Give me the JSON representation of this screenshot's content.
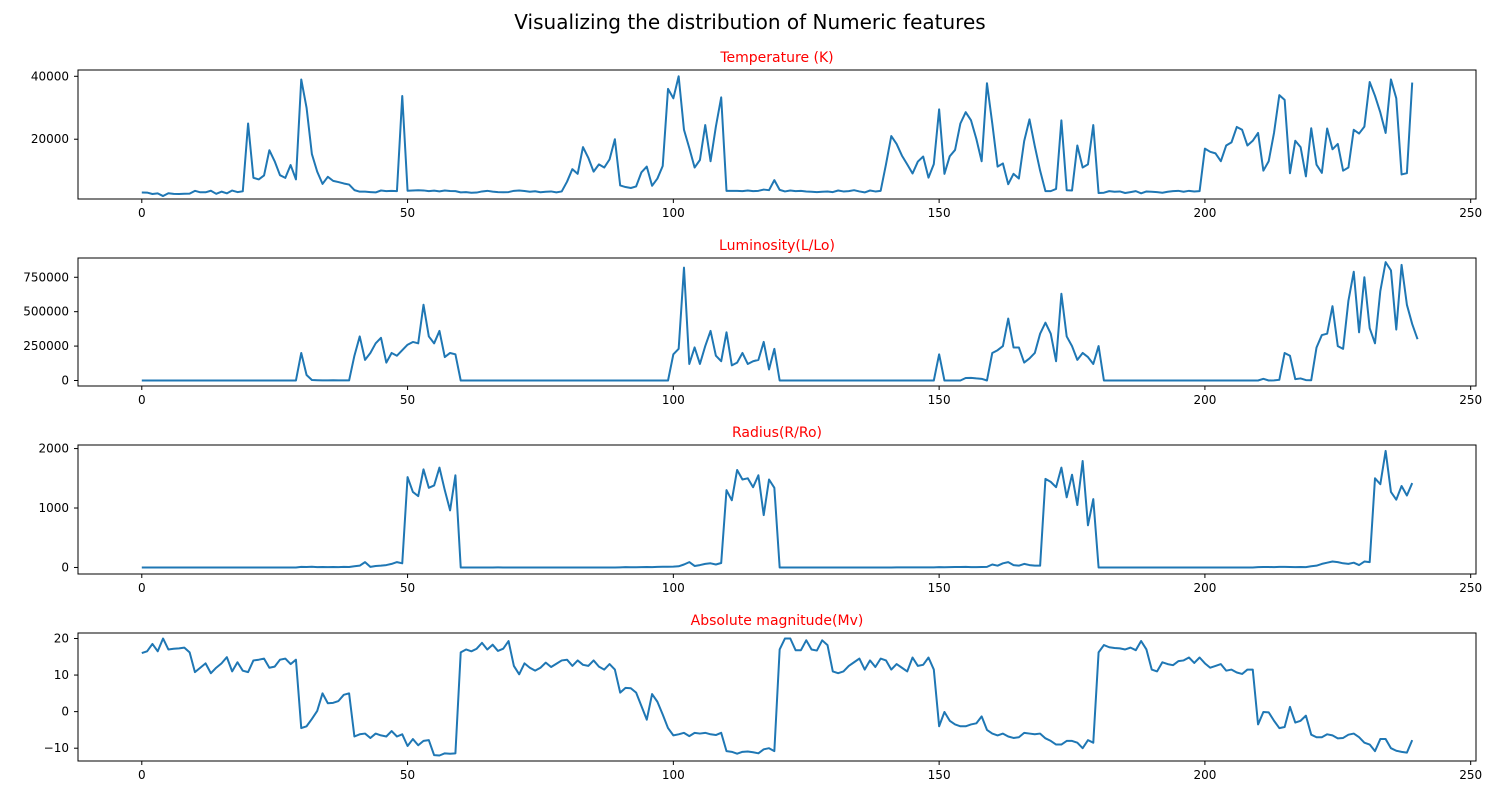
{
  "figure": {
    "suptitle": "Visualizing the distribution of Numeric features"
  },
  "chart_data": [
    {
      "type": "line",
      "title": "Temperature (K)",
      "title_color": "#ff0000",
      "line_color": "#1f77b4",
      "xlim": [
        -12,
        251
      ],
      "ylim": [
        1000,
        42000
      ],
      "xticks": [
        0,
        50,
        100,
        150,
        200,
        250
      ],
      "yticks": [
        20000,
        40000
      ],
      "ytick_labels": [
        "20000",
        "40000"
      ],
      "grid": false,
      "x_start": 0,
      "values": [
        3068,
        3042,
        2600,
        2800,
        1939,
        2840,
        2637,
        2600,
        2650,
        2700,
        3600,
        3129,
        3134,
        3628,
        2650,
        3340,
        2799,
        3692,
        3192,
        3441,
        25000,
        7740,
        7220,
        8500,
        16500,
        12990,
        8570,
        7700,
        11790,
        7230,
        39000,
        30000,
        15276,
        9700,
        5800,
        8052,
        6757,
        6380,
        5936,
        5587,
        3826,
        3331,
        3340,
        3200,
        3090,
        3700,
        3500,
        3570,
        3500,
        33750,
        3626,
        3700,
        3800,
        3720,
        3500,
        3650,
        3420,
        3700,
        3550,
        3500,
        3100,
        3200,
        3000,
        3050,
        3400,
        3600,
        3350,
        3200,
        3150,
        3200,
        3600,
        3700,
        3550,
        3300,
        3450,
        3150,
        3300,
        3400,
        3100,
        3400,
        6500,
        10500,
        9000,
        17500,
        14100,
        9700,
        12000,
        11000,
        13600,
        20000,
        5300,
        4800,
        4500,
        5000,
        9500,
        11300,
        5200,
        7500,
        11500,
        36000,
        33000,
        40000,
        23000,
        17200,
        11000,
        13400,
        24500,
        13000,
        24000,
        33300,
        3600,
        3580,
        3600,
        3500,
        3700,
        3500,
        3600,
        4000,
        3800,
        7000,
        3900,
        3400,
        3700,
        3500,
        3600,
        3400,
        3300,
        3200,
        3300,
        3400,
        3200,
        3700,
        3400,
        3500,
        3800,
        3400,
        3100,
        3700,
        3400,
        3600,
        12000,
        21000,
        18500,
        14800,
        12000,
        9100,
        12900,
        14500,
        7800,
        12100,
        29500,
        9000,
        14600,
        16600,
        25000,
        28600,
        26000,
        20100,
        13000,
        37800,
        25000,
        11300,
        12300,
        5700,
        9000,
        7500,
        19400,
        26300,
        17800,
        10000,
        3500,
        3500,
        4200,
        26000,
        3800,
        3700,
        18000,
        11000,
        12000,
        24500,
        2900,
        3000,
        3500,
        3300,
        3400,
        2900,
        3200,
        3500,
        2800,
        3400,
        3300,
        3200,
        3000,
        3300,
        3500,
        3600,
        3300,
        3600,
        3400,
        3500,
        17000,
        16000,
        15500,
        13000,
        18000,
        19000,
        23900,
        23000,
        18000,
        19500,
        22000,
        10000,
        13000,
        22000,
        34000,
        32500,
        9200,
        19500,
        17500,
        8200,
        23500,
        11900,
        9300,
        23400,
        16800,
        18500,
        10000,
        11000,
        23000,
        21800,
        24000,
        38200,
        33800,
        28500,
        22000,
        39000,
        33000,
        8800,
        9200,
        38000
      ]
    },
    {
      "type": "line",
      "title": "Luminosity(L/Lo)",
      "title_color": "#ff0000",
      "line_color": "#1f77b4",
      "xlim": [
        -12,
        251
      ],
      "ylim": [
        -40000,
        890000
      ],
      "xticks": [
        0,
        50,
        100,
        150,
        200,
        250
      ],
      "yticks": [
        0,
        250000,
        500000,
        750000
      ],
      "ytick_labels": [
        "0",
        "250000",
        "500000",
        "750000"
      ],
      "grid": false,
      "x_start": 0,
      "values": [
        0.0024,
        0.0005,
        0.0003,
        0.0002,
        0.00014,
        0.00065,
        0.00073,
        0.0004,
        0.00069,
        0.00018,
        0.00029,
        0.00035,
        0.0006,
        0.0001,
        0.0015,
        0.0003,
        0.0001,
        0.0002,
        0.0005,
        0.0006,
        0.00021,
        0.00018,
        0.0007,
        0.0003,
        0.0004,
        0.00095,
        0.0011,
        0.0013,
        0.0007,
        0.0008,
        200000,
        40000,
        3800,
        2000,
        1000,
        900,
        1500,
        1200,
        800,
        700,
        180000,
        320000,
        150000,
        200000,
        270000,
        310000,
        130000,
        200000,
        180000,
        220000,
        260000,
        280000,
        270000,
        550000,
        320000,
        270000,
        360000,
        170000,
        200000,
        190000,
        0.003,
        0.0002,
        0.0002,
        0.0003,
        0.0004,
        0.0005,
        0.0003,
        0.0002,
        0.0003,
        0.0004,
        0.0006,
        0.0008,
        0.0008,
        0.0002,
        0.0005,
        0.0004,
        0.0006,
        0.0003,
        0.0002,
        0.0007,
        0.0005,
        0.0001,
        0.0007,
        0.0005,
        0.0004,
        0.0003,
        0.0002,
        0.0006,
        0.0005,
        0.0005,
        0.001,
        0.0006,
        0.0008,
        0.0012,
        0.0011,
        0.0008,
        0.0009,
        0.0015,
        0.0006,
        0.0014,
        190000,
        230000,
        820000,
        120000,
        240000,
        120000,
        250000,
        360000,
        180000,
        140000,
        350000,
        110000,
        130000,
        200000,
        120000,
        140000,
        150000,
        280000,
        80000,
        230000,
        0.0009,
        0.0011,
        0.001,
        0.0008,
        0.0009,
        0.0012,
        0.0015,
        0.001,
        0.0015,
        0.0011,
        0.0009,
        0.0013,
        0.0014,
        0.0011,
        0.0012,
        0.0009,
        0.0008,
        0.0013,
        0.0014,
        0.0012,
        0.0015,
        0.0012,
        0.0011,
        0.0009,
        0.0008,
        0.0013,
        0.0011,
        0.0014,
        0.0012,
        0.001,
        190000,
        0.9,
        1.5,
        2,
        4.5,
        18000,
        19000,
        15000,
        12000,
        3,
        200000,
        220000,
        250000,
        450000,
        240000,
        240000,
        130000,
        160000,
        200000,
        340000,
        420000,
        340000,
        140000,
        630000,
        320000,
        250000,
        150000,
        200000,
        170000,
        120000,
        250000,
        0.002,
        0.0012,
        0.0011,
        0.0013,
        0.0009,
        0.0015,
        0.0014,
        0.0008,
        0.001,
        0.0013,
        0.0011,
        0.0012,
        0.0015,
        0.0009,
        0.001,
        0.0014,
        0.0013,
        0.0011,
        0.001,
        0.0009,
        0.0012,
        0.0015,
        0.0013,
        0.0011,
        0.001,
        0.0012,
        0.0014,
        0.0013,
        0.001,
        0.0011,
        12000,
        0.2,
        1000,
        5000,
        200000,
        180000,
        10000,
        15000,
        3000,
        2000,
        240000,
        330000,
        340000,
        540000,
        250000,
        230000,
        580000,
        790000,
        350000,
        750000,
        380000,
        270000,
        650000,
        860000,
        800000,
        370000,
        840000,
        550000,
        410000,
        300000
      ]
    },
    {
      "type": "line",
      "title": "Radius(R/Ro)",
      "title_color": "#ff0000",
      "line_color": "#1f77b4",
      "xlim": [
        -12,
        251
      ],
      "ylim": [
        -110,
        2060
      ],
      "xticks": [
        0,
        50,
        100,
        150,
        200,
        250
      ],
      "yticks": [
        0,
        1000,
        2000
      ],
      "ytick_labels": [
        "0",
        "1000",
        "2000"
      ],
      "grid": false,
      "x_start": 0,
      "values": [
        0.17,
        0.15,
        0.1,
        0.16,
        0.1,
        0.13,
        0.11,
        0.13,
        0.12,
        0.12,
        0.19,
        0.16,
        0.15,
        0.15,
        0.13,
        0.16,
        0.13,
        0.12,
        0.14,
        0.13,
        0.012,
        0.011,
        0.009,
        0.01,
        0.013,
        0.014,
        0.012,
        0.01,
        0.009,
        0.011,
        10,
        8,
        12,
        6,
        7,
        5,
        8,
        6,
        9,
        7,
        20,
        30,
        90,
        10,
        25,
        30,
        40,
        60,
        90,
        70,
        1520,
        1270,
        1200,
        1650,
        1340,
        1380,
        1680,
        1300,
        960,
        1550,
        0.3,
        0.24,
        0.25,
        0.19,
        0.2,
        0.35,
        0.4,
        0.5,
        0.32,
        0.26,
        0.34,
        0.27,
        0.31,
        0.33,
        0.23,
        0.29,
        0.36,
        0.25,
        0.28,
        0.32,
        0.009,
        0.008,
        0.012,
        0.011,
        0.014,
        0.01,
        0.007,
        0.013,
        0.009,
        0.011,
        2,
        5,
        4,
        3,
        6,
        8,
        5,
        10,
        12,
        13,
        14,
        20,
        50,
        90,
        25,
        40,
        60,
        70,
        50,
        75,
        1300,
        1130,
        1640,
        1480,
        1500,
        1350,
        1550,
        880,
        1480,
        1340,
        0.013,
        0.012,
        0.009,
        0.01,
        0.014,
        0.011,
        0.008,
        0.013,
        0.012,
        0.009,
        0.01,
        0.011,
        0.013,
        0.012,
        0.014,
        0.009,
        0.01,
        0.008,
        0.011,
        0.012,
        0.2,
        0.35,
        0.5,
        0.6,
        0.8,
        1,
        1.2,
        1.5,
        1.7,
        2,
        5,
        4,
        6,
        7,
        8,
        9,
        6,
        5,
        7,
        10,
        50,
        30,
        70,
        90,
        40,
        30,
        60,
        40,
        30,
        30,
        1490,
        1440,
        1350,
        1680,
        1180,
        1560,
        1050,
        1790,
        710,
        1150,
        0.01,
        0.012,
        0.009,
        0.011,
        0.013,
        0.008,
        0.01,
        0.014,
        0.012,
        0.009,
        0.011,
        0.013,
        0.01,
        0.012,
        0.008,
        0.009,
        0.011,
        0.013,
        0.012,
        0.01,
        0.009,
        0.011,
        0.014,
        0.012,
        0.01,
        0.013,
        0.011,
        0.009,
        0.008,
        0.012,
        5,
        8,
        7,
        6,
        9,
        10,
        7,
        5,
        8,
        6,
        20,
        30,
        60,
        80,
        100,
        90,
        70,
        60,
        80,
        40,
        100,
        90,
        1500,
        1400,
        1960,
        1270,
        1140,
        1370,
        1210,
        1420
      ]
    },
    {
      "type": "line",
      "title": "Absolute magnitude(Mv)",
      "title_color": "#ff0000",
      "line_color": "#1f77b4",
      "xlim": [
        -12,
        251
      ],
      "ylim": [
        -13.5,
        21.5
      ],
      "xticks": [
        0,
        50,
        100,
        150,
        200,
        250
      ],
      "yticks": [
        -10,
        0,
        10,
        20
      ],
      "ytick_labels": [
        "−10",
        "0",
        "10",
        "20"
      ],
      "grid": false,
      "x_start": 0,
      "values": [
        16,
        16.5,
        18.5,
        16.5,
        20,
        17,
        17.2,
        17.3,
        17.5,
        16.2,
        10.8,
        12,
        13.2,
        10.5,
        12,
        13.2,
        14.9,
        11,
        13.5,
        11.2,
        10.8,
        14,
        14.2,
        14.5,
        12,
        12.3,
        14.2,
        14.5,
        13,
        14.2,
        -4.5,
        -4,
        -2,
        0.2,
        5,
        2.3,
        2.4,
        2.9,
        4.6,
        5,
        -6.8,
        -6.2,
        -6,
        -7.2,
        -6,
        -6.5,
        -6.8,
        -5.3,
        -6.8,
        -6.2,
        -9.4,
        -7.5,
        -9.2,
        -8,
        -7.8,
        -11.9,
        -12,
        -11.4,
        -11.5,
        -11.4,
        16.2,
        17,
        16.5,
        17.2,
        18.8,
        17,
        18.3,
        16.6,
        17.2,
        19.3,
        12.5,
        10.2,
        13.2,
        12,
        11.2,
        12,
        13.4,
        12.2,
        13.1,
        14,
        14.2,
        12.5,
        14,
        12.8,
        12.5,
        14,
        12.3,
        11.5,
        13,
        11.5,
        5.2,
        6.5,
        6.4,
        5.2,
        1.5,
        -2.2,
        4.8,
        2.7,
        -0.8,
        -4.5,
        -6.5,
        -6.2,
        -5.8,
        -6.7,
        -5.8,
        -6,
        -5.8,
        -6.2,
        -6.4,
        -5.8,
        -10.8,
        -11,
        -11.5,
        -11,
        -10.9,
        -11.1,
        -11.4,
        -10.3,
        -10,
        -10.8,
        17,
        20,
        20,
        16.8,
        16.8,
        19.5,
        17,
        16.7,
        19.5,
        18.2,
        11,
        10.5,
        11,
        12.5,
        13.5,
        14.5,
        11.5,
        14,
        12.2,
        14.5,
        14,
        11.5,
        13,
        12,
        11,
        14.8,
        12.5,
        12.8,
        14.8,
        11.5,
        -4,
        -0.1,
        -2.5,
        -3.5,
        -4,
        -4,
        -3.5,
        -3.2,
        -1.3,
        -5,
        -6,
        -6.5,
        -6,
        -6.8,
        -7.2,
        -7,
        -5.8,
        -6,
        -6.2,
        -6,
        -7.3,
        -8,
        -9,
        -9,
        -8,
        -8,
        -8.5,
        -10,
        -7.8,
        -8.5,
        16.2,
        18.2,
        17.6,
        17.4,
        17.3,
        17,
        17.5,
        16.8,
        19.3,
        17,
        11.5,
        11,
        13.5,
        13,
        12.7,
        13.8,
        14,
        14.8,
        13.3,
        14.8,
        13.2,
        12,
        12.5,
        13,
        11.2,
        11.5,
        10.7,
        10.3,
        11.5,
        11.5,
        -3.5,
        -0.1,
        -0.2,
        -2.5,
        -4.5,
        -4.2,
        1.3,
        -3,
        -2.5,
        -1.1,
        -6.3,
        -7,
        -7,
        -6.2,
        -6.5,
        -7.3,
        -7.2,
        -6.3,
        -6,
        -7,
        -8.5,
        -9,
        -10.8,
        -7.5,
        -7.5,
        -10,
        -10.7,
        -11,
        -11.2,
        -7.8
      ]
    }
  ]
}
